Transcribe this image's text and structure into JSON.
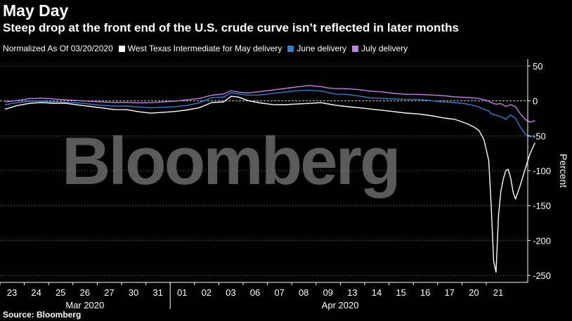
{
  "title": "May Day",
  "subtitle": "Steep drop at the front end of the U.S. crude curve isn’t reflected in later months",
  "source": "Source: Bloomberg",
  "watermark": "Bloomberg",
  "colors": {
    "background": "#000000",
    "wti_may": "#ffffff",
    "june": "#2f7fd6",
    "july": "#c77ee6"
  },
  "chart_data": {
    "type": "line",
    "legend": {
      "placement": "top-left",
      "normalized_label": "Normalized As Of 03/20/2020",
      "entries": [
        "West Texas Intermediate for May delivery",
        "June delivery",
        "July delivery"
      ]
    },
    "ylabel": "Percent",
    "ylim": [
      -260,
      60
    ],
    "yticks": [
      50,
      0,
      -50,
      -100,
      -150,
      -200,
      -250
    ],
    "grid": "horizontal-dotted",
    "zero_line": "dashed",
    "x_tick_labels": [
      "23",
      "24",
      "25",
      "26",
      "27",
      "30",
      "31",
      "01",
      "02",
      "03",
      "06",
      "07",
      "08",
      "09",
      "13",
      "14",
      "15",
      "16",
      "17",
      "20",
      "21"
    ],
    "x_group_labels": [
      {
        "label": "Mar 2020",
        "from": 0,
        "to": 6
      },
      {
        "label": "Apr 2020",
        "from": 7,
        "to": 20
      }
    ],
    "x_end": 21.8,
    "series": [
      {
        "name": "West Texas Intermediate for May delivery",
        "color": "#ffffff",
        "x": [
          0,
          0.5,
          1,
          1.5,
          2,
          2.5,
          3,
          3.5,
          4,
          4.5,
          5,
          5.5,
          6,
          6.5,
          7,
          7.5,
          8,
          8.5,
          9,
          9.3,
          9.6,
          10,
          10.5,
          11,
          11.5,
          12,
          12.5,
          13,
          13.3,
          13.6,
          14,
          14.5,
          15,
          15.5,
          16,
          16.5,
          17,
          17.5,
          18,
          18.5,
          19,
          19.3,
          19.5,
          19.7,
          19.9,
          20.0,
          20.1,
          20.2,
          20.3,
          20.4,
          20.5,
          20.6,
          20.7,
          20.8,
          20.9,
          21.0,
          21.2,
          21.4,
          21.6,
          21.8
        ],
        "values": [
          -12,
          -7,
          -4,
          -3,
          -4,
          -4,
          -6,
          -8,
          -10,
          -12,
          -12,
          -15,
          -17,
          -16,
          -15,
          -13,
          -10,
          -3,
          -2,
          6,
          5,
          0,
          -3,
          -5,
          -5,
          -4,
          -3,
          -2,
          -4,
          -6,
          -8,
          -10,
          -12,
          -14,
          -16,
          -18,
          -19,
          -21,
          -24,
          -26,
          -32,
          -37,
          -42,
          -55,
          -85,
          -150,
          -230,
          -246,
          -165,
          -130,
          -112,
          -100,
          -98,
          -110,
          -130,
          -140,
          -120,
          -97,
          -75,
          -60
        ]
      },
      {
        "name": "June delivery",
        "color": "#2f7fd6",
        "x": [
          0,
          0.5,
          1,
          1.5,
          2,
          2.5,
          3,
          3.5,
          4,
          4.5,
          5,
          5.5,
          6,
          6.5,
          7,
          7.5,
          8,
          8.5,
          9,
          9.3,
          9.6,
          10,
          10.5,
          11,
          11.5,
          12,
          12.5,
          13,
          13.3,
          13.6,
          14,
          14.5,
          15,
          15.5,
          16,
          16.5,
          17,
          17.5,
          18,
          18.5,
          19,
          19.3,
          19.5,
          19.7,
          19.9,
          20.0,
          20.2,
          20.4,
          20.6,
          20.8,
          21.0,
          21.2,
          21.4,
          21.6,
          21.8
        ],
        "values": [
          -5,
          -2,
          0,
          0,
          -1,
          -2,
          -3,
          -5,
          -7,
          -8,
          -8,
          -9,
          -10,
          -9,
          -8,
          -6,
          -2,
          5,
          6,
          12,
          10,
          8,
          8,
          10,
          12,
          14,
          15,
          14,
          12,
          10,
          10,
          8,
          5,
          4,
          3,
          2,
          2,
          0,
          -2,
          -3,
          -5,
          -7,
          -9,
          -12,
          -14,
          -18,
          -20,
          -22,
          -26,
          -20,
          -25,
          -38,
          -48,
          -52,
          -50
        ]
      },
      {
        "name": "July delivery",
        "color": "#c77ee6",
        "x": [
          0,
          0.5,
          1,
          1.5,
          2,
          2.5,
          3,
          3.5,
          4,
          4.5,
          5,
          5.5,
          6,
          6.5,
          7,
          7.5,
          8,
          8.5,
          9,
          9.3,
          9.6,
          10,
          10.5,
          11,
          11.5,
          12,
          12.5,
          13,
          13.3,
          13.6,
          14,
          14.5,
          15,
          15.5,
          16,
          16.5,
          17,
          17.5,
          18,
          18.5,
          19,
          19.3,
          19.5,
          19.7,
          19.9,
          20.0,
          20.2,
          20.4,
          20.6,
          20.8,
          21.0,
          21.2,
          21.4,
          21.6,
          21.8
        ],
        "values": [
          -2,
          0,
          3,
          4,
          3,
          2,
          1,
          0,
          -1,
          -2,
          -2,
          -3,
          -3,
          -2,
          -1,
          1,
          3,
          8,
          10,
          15,
          13,
          12,
          14,
          16,
          18,
          20,
          22,
          20,
          18,
          17,
          17,
          16,
          14,
          13,
          11,
          10,
          10,
          9,
          8,
          6,
          5,
          4,
          3,
          1,
          -1,
          -3,
          -5,
          -4,
          -8,
          -5,
          -8,
          -18,
          -26,
          -30,
          -28
        ]
      }
    ]
  }
}
